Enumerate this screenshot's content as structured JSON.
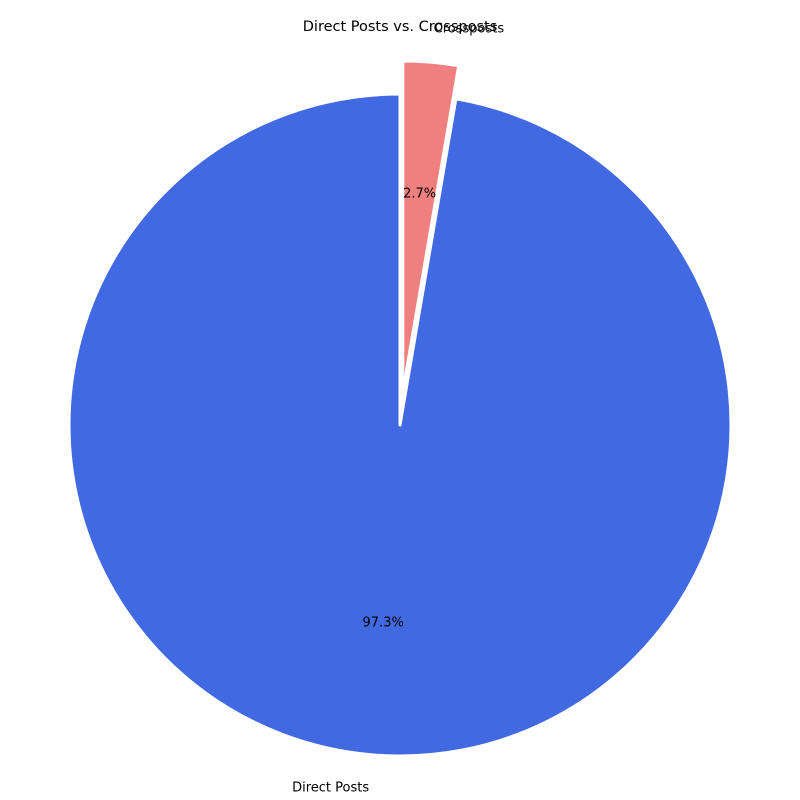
{
  "chart_data": {
    "type": "pie",
    "title": "Direct Posts vs. Crossposts",
    "slices": [
      {
        "label": "Direct Posts",
        "value": 97.3,
        "pct_label": "97.3%",
        "color": "#4169E1",
        "exploded": false
      },
      {
        "label": "Crossposts",
        "value": 2.7,
        "pct_label": "2.7%",
        "color": "#F08080",
        "exploded": true
      }
    ],
    "start_angle": "top",
    "direction": "clockwise",
    "edge_color": "#ffffff",
    "legend": "none"
  }
}
